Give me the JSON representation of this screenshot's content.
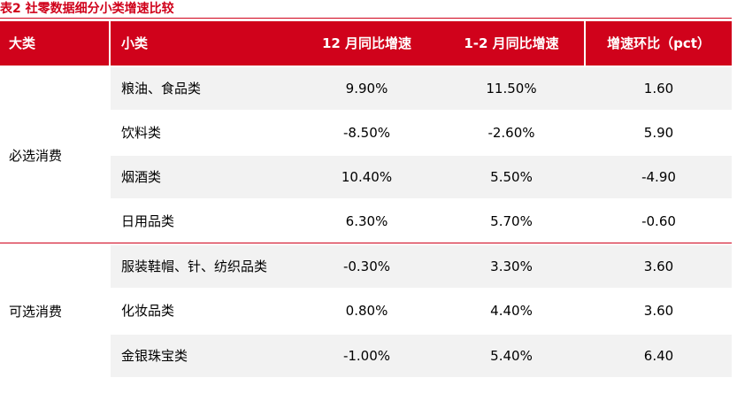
{
  "caption": "表2  社零数据细分小类增速比较",
  "colors": {
    "accent": "#d0021b",
    "shade": "#f2f2f2",
    "header_text": "#ffffff"
  },
  "table": {
    "headers": [
      "大类",
      "小类",
      "12 月同比增速",
      "1-2 月同比增速",
      "增速环比（pct）"
    ],
    "groups": [
      {
        "category": "必选消费",
        "rows": [
          {
            "name": "粮油、食品类",
            "dec_yoy": "9.90%",
            "jan_feb_yoy": "11.50%",
            "change_pct": "1.60"
          },
          {
            "name": "饮料类",
            "dec_yoy": "-8.50%",
            "jan_feb_yoy": "-2.60%",
            "change_pct": "5.90"
          },
          {
            "name": "烟酒类",
            "dec_yoy": "10.40%",
            "jan_feb_yoy": "5.50%",
            "change_pct": "-4.90"
          },
          {
            "name": "日用品类",
            "dec_yoy": "6.30%",
            "jan_feb_yoy": "5.70%",
            "change_pct": "-0.60"
          }
        ]
      },
      {
        "category": "可选消费",
        "rows": [
          {
            "name": "服装鞋帽、针、纺织品类",
            "dec_yoy": "-0.30%",
            "jan_feb_yoy": "3.30%",
            "change_pct": "3.60"
          },
          {
            "name": "化妆品类",
            "dec_yoy": "0.80%",
            "jan_feb_yoy": "4.40%",
            "change_pct": "3.60"
          },
          {
            "name": "金银珠宝类",
            "dec_yoy": "-1.00%",
            "jan_feb_yoy": "5.40%",
            "change_pct": "6.40"
          }
        ]
      }
    ]
  }
}
